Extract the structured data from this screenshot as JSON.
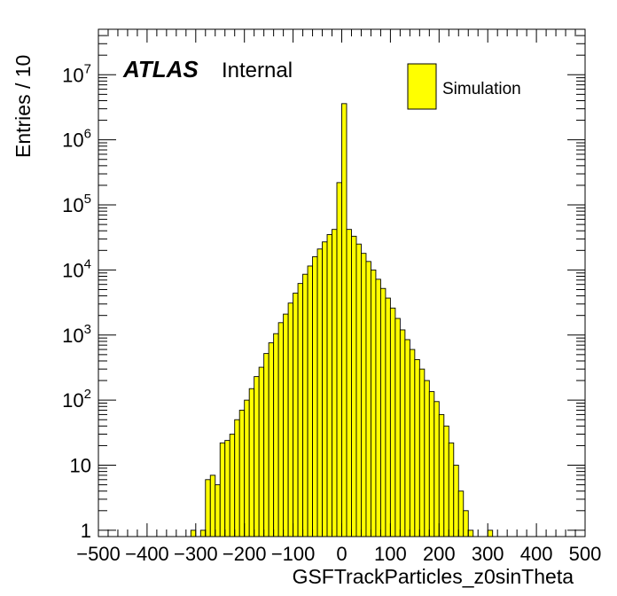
{
  "chart_data": {
    "type": "bar",
    "title": "",
    "xlabel": "GSFTrackParticles_z0sinTheta",
    "ylabel": "Entries / 10",
    "xlim": [
      -500,
      500
    ],
    "ylim": [
      0.8,
      50000000
    ],
    "yscale": "log",
    "bin_width": 10,
    "x_ticks": [
      -500,
      -400,
      -300,
      -200,
      -100,
      0,
      100,
      200,
      300,
      400,
      500
    ],
    "x_tick_labels": [
      "−500",
      "−400",
      "−300",
      "−200",
      "−100",
      "0",
      "100",
      "200",
      "300",
      "400",
      "500"
    ],
    "y_ticks": [
      {
        "value": 1,
        "base": "1",
        "exp": ""
      },
      {
        "value": 10,
        "base": "10",
        "exp": ""
      },
      {
        "value": 100,
        "base": "10",
        "exp": "2"
      },
      {
        "value": 1000,
        "base": "10",
        "exp": "3"
      },
      {
        "value": 10000,
        "base": "10",
        "exp": "4"
      },
      {
        "value": 100000,
        "base": "10",
        "exp": "5"
      },
      {
        "value": 1000000,
        "base": "10",
        "exp": "6"
      },
      {
        "value": 10000000,
        "base": "10",
        "exp": "7"
      }
    ],
    "label_main": "ATLAS",
    "label_sub": "Internal",
    "legend_position": "top-right",
    "series": [
      {
        "name": "Simulation",
        "color": "#ffff00",
        "edge_color": "#000000",
        "bins": [
          {
            "x": -310,
            "y": 1
          },
          {
            "x": -300,
            "y": 0
          },
          {
            "x": -290,
            "y": 1
          },
          {
            "x": -280,
            "y": 6
          },
          {
            "x": -270,
            "y": 7
          },
          {
            "x": -260,
            "y": 5
          },
          {
            "x": -250,
            "y": 22
          },
          {
            "x": -240,
            "y": 24
          },
          {
            "x": -230,
            "y": 30
          },
          {
            "x": -220,
            "y": 50
          },
          {
            "x": -210,
            "y": 70
          },
          {
            "x": -200,
            "y": 100
          },
          {
            "x": -190,
            "y": 150
          },
          {
            "x": -180,
            "y": 230
          },
          {
            "x": -170,
            "y": 320
          },
          {
            "x": -160,
            "y": 520
          },
          {
            "x": -150,
            "y": 760
          },
          {
            "x": -140,
            "y": 1050
          },
          {
            "x": -130,
            "y": 1550
          },
          {
            "x": -120,
            "y": 2100
          },
          {
            "x": -110,
            "y": 3100
          },
          {
            "x": -100,
            "y": 4400
          },
          {
            "x": -90,
            "y": 6200
          },
          {
            "x": -80,
            "y": 8600
          },
          {
            "x": -70,
            "y": 11500
          },
          {
            "x": -60,
            "y": 16000
          },
          {
            "x": -50,
            "y": 21000
          },
          {
            "x": -40,
            "y": 27000
          },
          {
            "x": -30,
            "y": 35000
          },
          {
            "x": -20,
            "y": 42000
          },
          {
            "x": -10,
            "y": 220000
          },
          {
            "x": 0,
            "y": 3600000
          },
          {
            "x": 10,
            "y": 42000
          },
          {
            "x": 20,
            "y": 33000
          },
          {
            "x": 30,
            "y": 25000
          },
          {
            "x": 40,
            "y": 18000
          },
          {
            "x": 50,
            "y": 13500
          },
          {
            "x": 60,
            "y": 10000
          },
          {
            "x": 70,
            "y": 7200
          },
          {
            "x": 80,
            "y": 5200
          },
          {
            "x": 90,
            "y": 3700
          },
          {
            "x": 100,
            "y": 2600
          },
          {
            "x": 110,
            "y": 1800
          },
          {
            "x": 120,
            "y": 1200
          },
          {
            "x": 130,
            "y": 850
          },
          {
            "x": 140,
            "y": 600
          },
          {
            "x": 150,
            "y": 420
          },
          {
            "x": 160,
            "y": 300
          },
          {
            "x": 170,
            "y": 200
          },
          {
            "x": 180,
            "y": 135
          },
          {
            "x": 190,
            "y": 95
          },
          {
            "x": 200,
            "y": 60
          },
          {
            "x": 210,
            "y": 40
          },
          {
            "x": 220,
            "y": 22
          },
          {
            "x": 230,
            "y": 10
          },
          {
            "x": 240,
            "y": 4
          },
          {
            "x": 250,
            "y": 2
          },
          {
            "x": 260,
            "y": 1
          },
          {
            "x": 270,
            "y": 0
          },
          {
            "x": 280,
            "y": 0
          },
          {
            "x": 290,
            "y": 0
          },
          {
            "x": 300,
            "y": 1
          }
        ]
      }
    ]
  }
}
